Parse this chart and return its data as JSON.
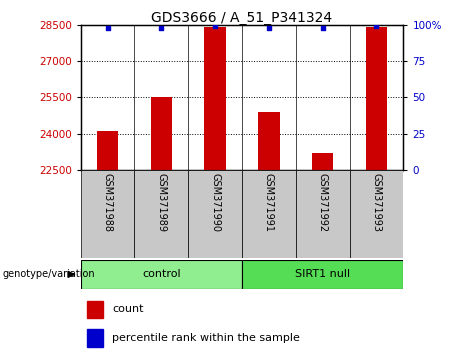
{
  "title": "GDS3666 / A_51_P341324",
  "samples": [
    "GSM371988",
    "GSM371989",
    "GSM371990",
    "GSM371991",
    "GSM371992",
    "GSM371993"
  ],
  "counts": [
    24100,
    25500,
    28400,
    24900,
    23200,
    28400
  ],
  "percentile_ranks": [
    98,
    98,
    99,
    98,
    98,
    99
  ],
  "ylim_left": [
    22500,
    28500
  ],
  "ylim_right": [
    0,
    100
  ],
  "yticks_left": [
    22500,
    24000,
    25500,
    27000,
    28500
  ],
  "yticks_right": [
    0,
    25,
    50,
    75,
    100
  ],
  "bar_color": "#CC0000",
  "dot_color": "#0000CC",
  "control_color": "#90EE90",
  "sirt_color": "#55DD55",
  "bar_width": 0.4,
  "label_count": "count",
  "label_percentile": "percentile rank within the sample",
  "genotype_label": "genotype/variation",
  "left_color": "#CC0000",
  "right_color": "#0000CC",
  "label_bg": "#C8C8C8"
}
